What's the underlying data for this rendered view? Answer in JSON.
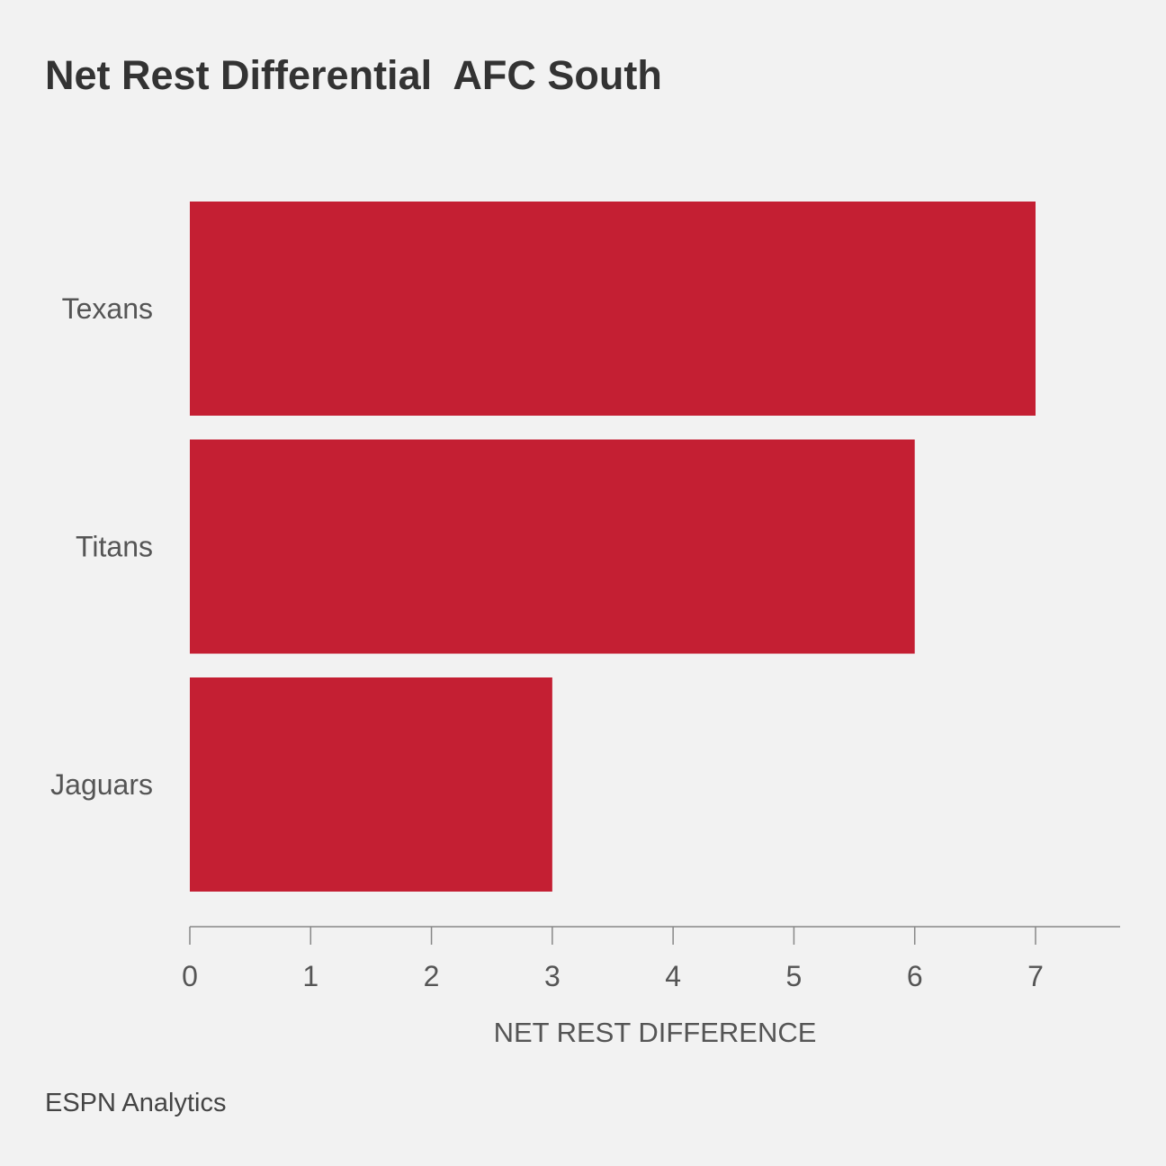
{
  "chart_data": {
    "type": "bar",
    "orientation": "horizontal",
    "title": "Net Rest Differential  AFC South",
    "categories": [
      "Texans",
      "Titans",
      "Jaguars"
    ],
    "values": [
      7,
      6,
      3
    ],
    "xlabel": "NET REST DIFFERENCE",
    "ylabel": "",
    "xlim": [
      0,
      7.7
    ],
    "xticks": [
      "0",
      "1",
      "2",
      "3",
      "4",
      "5",
      "6",
      "7"
    ],
    "bar_color": "#c41f33",
    "grid": false
  },
  "source": "ESPN Analytics"
}
